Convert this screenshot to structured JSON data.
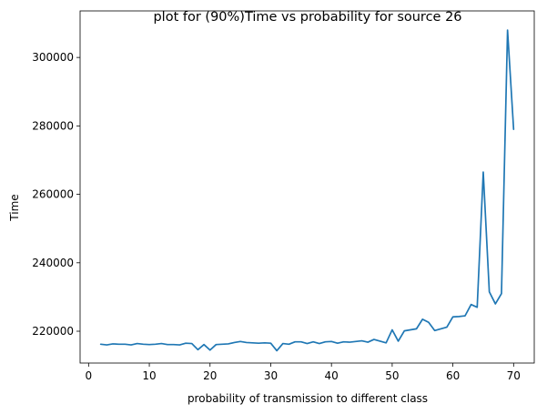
{
  "chart_data": {
    "type": "line",
    "title": "plot for (90%)Time vs probability for source 26",
    "xlabel": "probability of transmission to different class",
    "ylabel": "Time",
    "xlim": [
      -1.4,
      73.4
    ],
    "ylim": [
      210700,
      313600
    ],
    "xticks": [
      0,
      10,
      20,
      30,
      40,
      50,
      60,
      70
    ],
    "yticks": [
      220000,
      240000,
      260000,
      280000,
      300000
    ],
    "grid": false,
    "legend": "none",
    "line_color": "#1f77b4",
    "series": [
      {
        "x": [
          2,
          3,
          4,
          5,
          6,
          7,
          8,
          9,
          10,
          11,
          12,
          13,
          14,
          15,
          16,
          17,
          18,
          19,
          20,
          21,
          22,
          23,
          24,
          25,
          26,
          27,
          28,
          29,
          30,
          31,
          32,
          33,
          34,
          35,
          36,
          37,
          38,
          39,
          40,
          41,
          42,
          43,
          44,
          45,
          46,
          47,
          48,
          49,
          50,
          51,
          52,
          53,
          54,
          55,
          56,
          57,
          58,
          59,
          60,
          61,
          62,
          63,
          64,
          65,
          66,
          67,
          68,
          69,
          70
        ],
        "values": [
          216200,
          216000,
          216300,
          216200,
          216200,
          216000,
          216400,
          216200,
          216100,
          216200,
          216400,
          216100,
          216100,
          216000,
          216500,
          216400,
          214600,
          216100,
          214500,
          216100,
          216200,
          216300,
          216700,
          217000,
          216700,
          216600,
          216500,
          216600,
          216500,
          214300,
          216400,
          216200,
          216900,
          216900,
          216400,
          216900,
          216400,
          216900,
          217000,
          216500,
          216900,
          216800,
          217000,
          217200,
          216800,
          217600,
          217100,
          216600,
          220400,
          217100,
          220100,
          220400,
          220700,
          223500,
          222600,
          220200,
          220700,
          221200,
          224200,
          224300,
          224500,
          227800,
          227000,
          266500,
          231500,
          228000,
          231000,
          308000,
          279000
        ]
      }
    ]
  }
}
